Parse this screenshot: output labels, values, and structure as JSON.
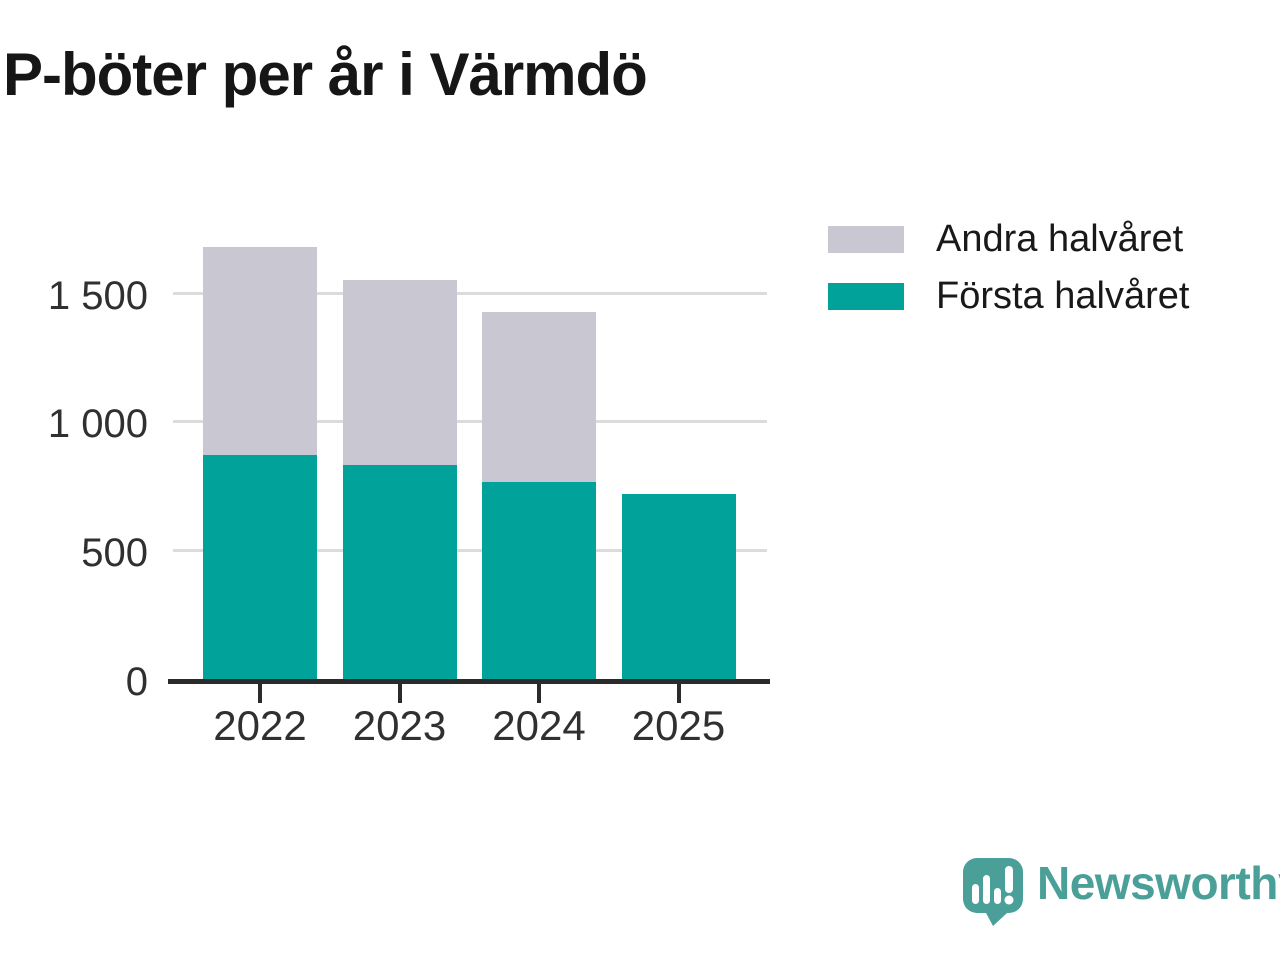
{
  "title": "P-böter per år i Värmdö",
  "legend": {
    "items": [
      {
        "label": "Andra halvåret",
        "color": "#c9c7d2"
      },
      {
        "label": "Första halvåret",
        "color": "#00a299"
      }
    ]
  },
  "chart_data": {
    "type": "bar",
    "stacked": true,
    "title": "P-böter per år i Värmdö",
    "categories": [
      "2022",
      "2023",
      "2024",
      "2025"
    ],
    "series": [
      {
        "name": "Första halvåret",
        "color": "#00a299",
        "values": [
          870,
          830,
          765,
          720
        ]
      },
      {
        "name": "Andra halvåret",
        "color": "#c9c7d2",
        "values": [
          810,
          720,
          660,
          0
        ]
      }
    ],
    "totals": [
      1680,
      1550,
      1425,
      720
    ],
    "xlabel": "",
    "ylabel": "",
    "ylim": [
      0,
      1745
    ],
    "y_ticks": [
      {
        "value": 0,
        "label": "0"
      },
      {
        "value": 500,
        "label": "500"
      },
      {
        "value": 1000,
        "label": "1 000"
      },
      {
        "value": 1500,
        "label": "1 500"
      }
    ],
    "grid": "horizontal-only",
    "legend_position": "top-right"
  },
  "colors": {
    "first_half": "#00a299",
    "second_half": "#c9c7d2",
    "gridline": "#dcdcdc",
    "axis": "#2b2b2b",
    "text_dark": "#161616",
    "text_axis": "#303030",
    "brand_teal": "#4aa099"
  },
  "branding": {
    "logo_text": "Newsworthy",
    "logo_icon": "newsworthy-speech-bubble-chart-icon"
  }
}
